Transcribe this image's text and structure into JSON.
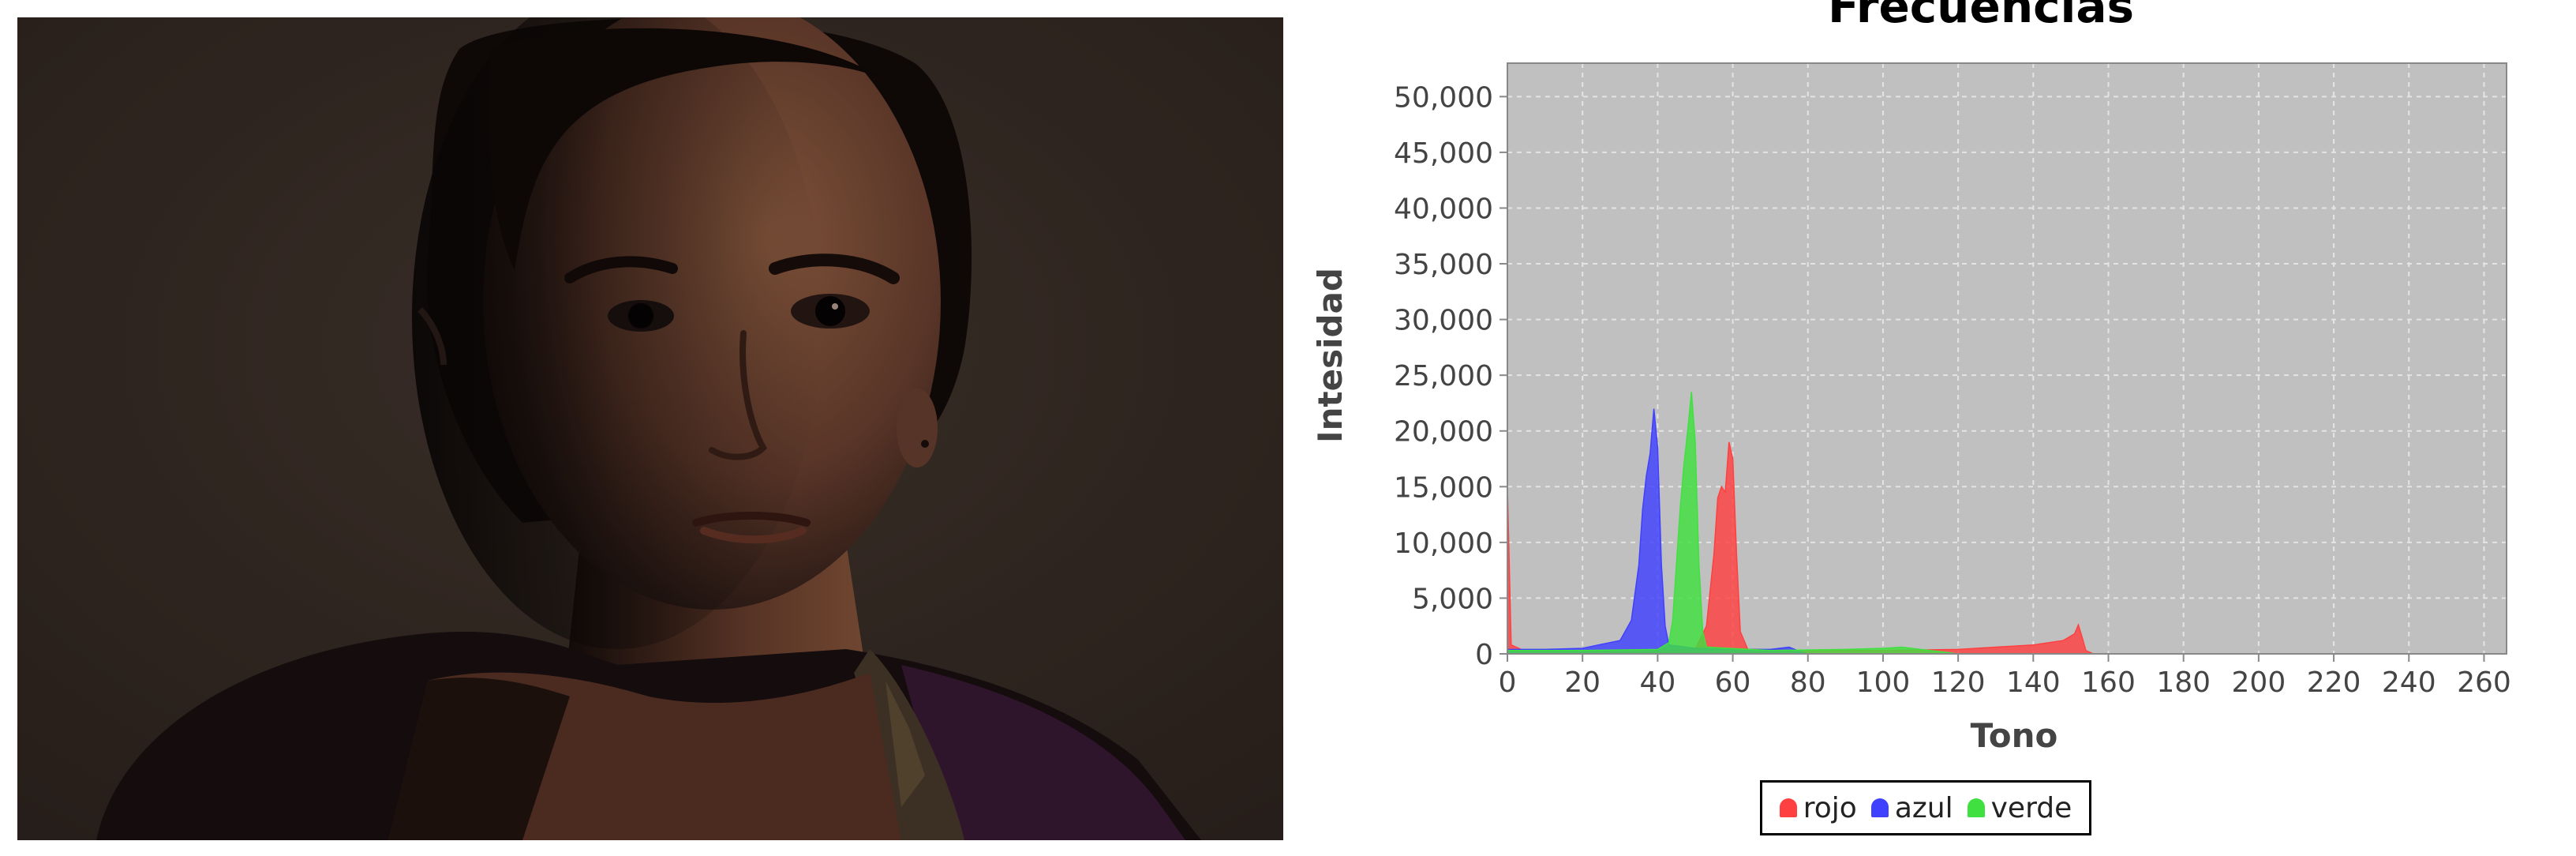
{
  "photo": {
    "subject_icon": "portrait-photo"
  },
  "chart_data": {
    "type": "area",
    "title": "Frecuencias",
    "xlabel": "Tono",
    "ylabel": "Intesidad",
    "xlim": [
      0,
      266
    ],
    "ylim": [
      0,
      53000
    ],
    "x_ticks": [
      "0",
      "20",
      "40",
      "60",
      "80",
      "100",
      "120",
      "140",
      "160",
      "180",
      "200",
      "220",
      "240",
      "260"
    ],
    "y_ticks": [
      "0",
      "5,000",
      "10,000",
      "15,000",
      "20,000",
      "25,000",
      "30,000",
      "35,000",
      "40,000",
      "45,000",
      "50,000"
    ],
    "grid": true,
    "legend_position": "bottom",
    "background_color": "#c0c0c0",
    "series": [
      {
        "name": "rojo",
        "color": "#ff4040",
        "points": [
          [
            0,
            15000
          ],
          [
            1,
            800
          ],
          [
            5,
            200
          ],
          [
            20,
            200
          ],
          [
            40,
            300
          ],
          [
            50,
            400
          ],
          [
            53,
            2500
          ],
          [
            55,
            9000
          ],
          [
            56,
            14000
          ],
          [
            57,
            15000
          ],
          [
            58,
            14500
          ],
          [
            59,
            19000
          ],
          [
            60,
            17500
          ],
          [
            61,
            9000
          ],
          [
            62,
            2000
          ],
          [
            64,
            400
          ],
          [
            80,
            300
          ],
          [
            100,
            300
          ],
          [
            120,
            400
          ],
          [
            140,
            800
          ],
          [
            148,
            1200
          ],
          [
            151,
            1800
          ],
          [
            152,
            2600
          ],
          [
            153,
            1500
          ],
          [
            154,
            300
          ],
          [
            156,
            0
          ]
        ]
      },
      {
        "name": "azul",
        "color": "#4040ff",
        "points": [
          [
            0,
            400
          ],
          [
            10,
            400
          ],
          [
            20,
            500
          ],
          [
            30,
            1200
          ],
          [
            33,
            3000
          ],
          [
            35,
            8000
          ],
          [
            36,
            13000
          ],
          [
            37,
            16000
          ],
          [
            38,
            18000
          ],
          [
            39,
            22000
          ],
          [
            40,
            18500
          ],
          [
            41,
            8000
          ],
          [
            42,
            2500
          ],
          [
            43,
            800
          ],
          [
            50,
            500
          ],
          [
            60,
            400
          ],
          [
            70,
            400
          ],
          [
            75,
            600
          ],
          [
            78,
            200
          ],
          [
            80,
            0
          ]
        ]
      },
      {
        "name": "verde",
        "color": "#40e040",
        "points": [
          [
            0,
            300
          ],
          [
            20,
            300
          ],
          [
            40,
            400
          ],
          [
            43,
            1000
          ],
          [
            44,
            3000
          ],
          [
            45,
            8000
          ],
          [
            46,
            13000
          ],
          [
            47,
            17000
          ],
          [
            48,
            20000
          ],
          [
            49,
            23500
          ],
          [
            50,
            19000
          ],
          [
            51,
            8000
          ],
          [
            52,
            2000
          ],
          [
            53,
            600
          ],
          [
            70,
            300
          ],
          [
            90,
            400
          ],
          [
            100,
            500
          ],
          [
            105,
            600
          ],
          [
            110,
            400
          ],
          [
            115,
            200
          ],
          [
            120,
            0
          ]
        ]
      }
    ]
  }
}
